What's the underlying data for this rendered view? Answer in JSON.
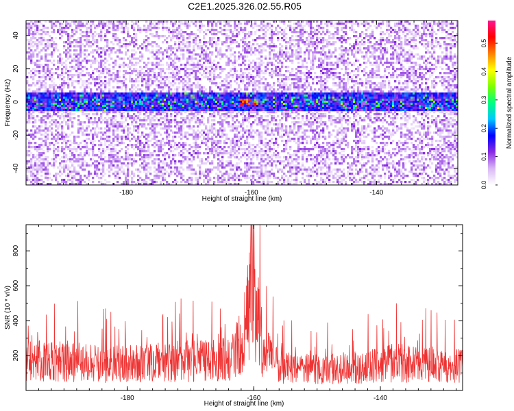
{
  "title": "C2E1.2025.326.02.55.R05",
  "chart_data": [
    {
      "type": "heatmap",
      "xlabel": "Height of straight line (km)",
      "ylabel": "Frequency (Hz)",
      "xlim": [
        -196,
        -127
      ],
      "ylim": [
        -50,
        49
      ],
      "xticks": [
        -180,
        -160,
        -140
      ],
      "yticks": [
        -40,
        -20,
        0,
        20,
        40
      ],
      "xtick_labels": [
        "-180",
        "-160",
        "-140"
      ],
      "ytick_labels": [
        "-40",
        "-20",
        "0",
        "20",
        "40"
      ],
      "band_center_hz": 0,
      "band_halfwidth_hz": 6,
      "colorbar": {
        "label": "Normalized spectral amplitude",
        "range": [
          0.0,
          0.58
        ],
        "ticks": [
          0.0,
          0.1,
          0.2,
          0.3,
          0.4,
          0.5
        ],
        "tick_labels": [
          "0.0",
          "0.1",
          "0.2",
          "0.3",
          "0.4",
          "0.5"
        ],
        "colors": [
          "#ffffff",
          "#d9b8f5",
          "#8a2be2",
          "#0000ff",
          "#00c8ff",
          "#00ff80",
          "#80ff00",
          "#ffff00",
          "#ff8000",
          "#ff0000",
          "#ff1493"
        ]
      }
    },
    {
      "type": "line",
      "xlabel": "Height of straight line (km)",
      "ylabel": "SNR (10 * v/v)",
      "xlim": [
        -196,
        -127
      ],
      "ylim": [
        0,
        950
      ],
      "xticks": [
        -180,
        -160,
        -140
      ],
      "yticks": [
        200,
        400,
        600,
        800
      ],
      "xtick_labels": [
        "-180",
        "-160",
        "-140"
      ],
      "ytick_labels": [
        "200",
        "400",
        "600",
        "800"
      ],
      "series": [
        {
          "name": "SNR",
          "color": "#ee3333",
          "profile": [
            {
              "x": -196,
              "mean": 190
            },
            {
              "x": -190,
              "mean": 200
            },
            {
              "x": -184,
              "mean": 170
            },
            {
              "x": -178,
              "mean": 175
            },
            {
              "x": -172,
              "mean": 190
            },
            {
              "x": -166,
              "mean": 195
            },
            {
              "x": -163,
              "mean": 230
            },
            {
              "x": -161.5,
              "mean": 420
            },
            {
              "x": -160.5,
              "mean": 560
            },
            {
              "x": -159.5,
              "mean": 480
            },
            {
              "x": -158.5,
              "mean": 260
            },
            {
              "x": -156,
              "mean": 150
            },
            {
              "x": -150,
              "mean": 140
            },
            {
              "x": -144,
              "mean": 150
            },
            {
              "x": -138,
              "mean": 180
            },
            {
              "x": -133,
              "mean": 170
            },
            {
              "x": -127,
              "mean": 160
            }
          ],
          "peak": {
            "x": -160.3,
            "y": 950
          }
        }
      ]
    }
  ]
}
